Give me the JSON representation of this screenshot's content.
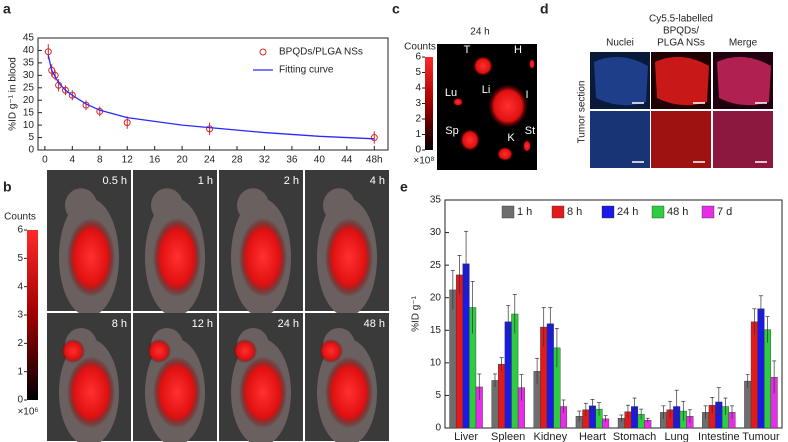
{
  "panel_labels": [
    "a",
    "b",
    "c",
    "d",
    "e"
  ],
  "chart_data": [
    {
      "type": "scatter",
      "ylabel": "%ID g⁻¹ in blood",
      "legend": "upper right",
      "xlim": [
        -1,
        50
      ],
      "ylim": [
        0,
        45
      ],
      "xticks": [
        0,
        4,
        8,
        12,
        16,
        20,
        24,
        28,
        32,
        36,
        40,
        44,
        {
          "value": 48,
          "label": "48h"
        }
      ],
      "yticks": [
        0,
        5,
        10,
        15,
        20,
        25,
        30,
        35,
        40,
        45
      ],
      "series": [
        {
          "name": "BPQDs/PLGA NSs",
          "color": "#d62728",
          "style": "markers",
          "x": [
            0.5,
            1,
            1.5,
            2,
            3,
            4,
            6,
            8,
            12,
            24,
            48
          ],
          "values": [
            39.5,
            32,
            30,
            26,
            24,
            22,
            18,
            15.5,
            11,
            8.5,
            5
          ],
          "errors": [
            3,
            2.5,
            2,
            2.5,
            2,
            2,
            2,
            2,
            2.5,
            2.5,
            2.5
          ]
        },
        {
          "name": "Fitting curve",
          "color": "#2a2aff",
          "style": "line",
          "x": [
            0.5,
            1,
            2,
            3,
            4,
            6,
            8,
            12,
            16,
            20,
            24,
            32,
            40,
            48
          ],
          "values": [
            38,
            32,
            27,
            24,
            22,
            18.5,
            16,
            13,
            11.5,
            10,
            9,
            7,
            5.5,
            4.5
          ]
        }
      ]
    },
    {
      "type": "bar",
      "ylabel": "%ID g⁻¹",
      "legend": "top",
      "ylim": [
        0,
        35
      ],
      "yticks": [
        0,
        5,
        10,
        15,
        20,
        25,
        30,
        35
      ],
      "categories": [
        "Liver",
        "Spleen",
        "Kidney",
        "Heart",
        "Stomach",
        "Lung",
        "Intestine",
        "Tumour"
      ],
      "series": [
        {
          "name": "1 h",
          "color": "#6e6e6e",
          "values": [
            21.2,
            7.3,
            8.7,
            1.8,
            1.5,
            2.4,
            2.4,
            7.2
          ],
          "errors": [
            3,
            1,
            2,
            0.8,
            0.5,
            1,
            1,
            1
          ]
        },
        {
          "name": "8 h",
          "color": "#e31a1c",
          "values": [
            23.5,
            9.8,
            15.5,
            2.8,
            2.5,
            2.8,
            3.5,
            16.3
          ],
          "errors": [
            3,
            1,
            3,
            1,
            1,
            1.3,
            1.2,
            2
          ]
        },
        {
          "name": "24 h",
          "color": "#1a1ae6",
          "values": [
            25.2,
            16.3,
            16,
            3.4,
            3.3,
            3.3,
            4,
            18.3
          ],
          "errors": [
            5,
            2.5,
            2.5,
            1,
            1.3,
            2.5,
            2.2,
            2
          ]
        },
        {
          "name": "48 h",
          "color": "#2ecc40",
          "values": [
            18.5,
            17.5,
            12.3,
            2.9,
            2.1,
            2.6,
            3.3,
            15.1
          ],
          "errors": [
            4,
            3,
            3,
            1,
            0.8,
            1.5,
            1.3,
            2
          ]
        },
        {
          "name": "7 d",
          "color": "#e62ee6",
          "values": [
            6.3,
            6.2,
            3.3,
            1.4,
            1.2,
            1.8,
            2.4,
            7.8
          ],
          "errors": [
            2,
            2,
            1,
            0.5,
            0.3,
            1,
            1,
            2.5
          ]
        }
      ]
    }
  ],
  "in_vivo": {
    "colorbar": {
      "title": "Counts",
      "lim": [
        0,
        6
      ],
      "ticks": [
        0,
        1,
        2,
        3,
        4,
        5,
        6
      ],
      "exponent": "×10⁶"
    },
    "times": [
      "0.5 h",
      "1 h",
      "2 h",
      "4 h",
      "8 h",
      "12 h",
      "24 h",
      "48 h"
    ]
  },
  "ex_vivo": {
    "title": "24 h",
    "colorbar": {
      "title": "Counts",
      "lim": [
        0,
        6
      ],
      "ticks": [
        0,
        1,
        2,
        3,
        4,
        5,
        6
      ],
      "exponent": "×10⁸"
    },
    "organs": [
      "T",
      "H",
      "Lu",
      "Li",
      "I",
      "Sp",
      "K",
      "St"
    ]
  },
  "tumor_section": {
    "columns": [
      [
        "Nuclei"
      ],
      [
        "Cy5.5-labelled",
        "BPQDs/",
        "PLGA NSs"
      ],
      [
        "Merge"
      ]
    ],
    "row_label": "Tumor section"
  }
}
